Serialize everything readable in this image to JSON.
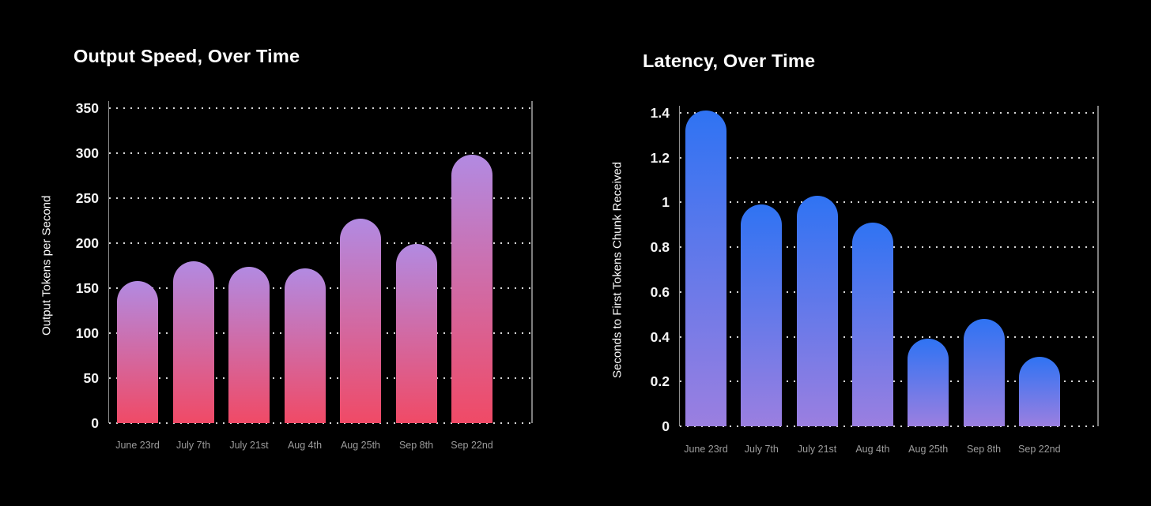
{
  "page": {
    "background_color": "#000000",
    "title_color": "#ffffff",
    "ytick_color": "#f4f4f4",
    "xtick_color": "#9c9c9c",
    "grid_color": "#d4d4d4",
    "axis_color": "#8f8f8f"
  },
  "chart_data": [
    {
      "type": "bar",
      "title": "Output Speed, Over Time",
      "ylabel": "Output Tokens per Second",
      "xlabel": "",
      "categories": [
        "June 23rd",
        "July 7th",
        "July 21st",
        "Aug 4th",
        "Aug 25th",
        "Sep 8th",
        "Sep 22nd"
      ],
      "values": [
        158,
        180,
        174,
        172,
        227,
        199,
        298
      ],
      "ylim": [
        0,
        350
      ],
      "yticks": [
        0,
        50,
        100,
        150,
        200,
        250,
        300,
        350
      ],
      "ytick_labels": [
        "0",
        "50",
        "100",
        "150",
        "200",
        "250",
        "300",
        "350"
      ],
      "grid": "dotted-horizontal",
      "legend": "none",
      "bar_gradient_top": "#b28ae2",
      "bar_gradient_bottom": "#f04a66"
    },
    {
      "type": "bar",
      "title": "Latency, Over Time",
      "ylabel": "Seconds to First Tokens Chunk Received",
      "xlabel": "",
      "categories": [
        "June 23rd",
        "July 7th",
        "July 21st",
        "Aug 4th",
        "Aug 25th",
        "Sep 8th",
        "Sep 22nd"
      ],
      "values": [
        1.41,
        0.99,
        1.03,
        0.91,
        0.39,
        0.48,
        0.31
      ],
      "ylim": [
        0,
        1.4
      ],
      "yticks": [
        0,
        0.2,
        0.4,
        0.6,
        0.8,
        1,
        1.2,
        1.4
      ],
      "ytick_labels": [
        "0",
        "0.2",
        "0.4",
        "0.6",
        "0.8",
        "1",
        "1.2",
        "1.4"
      ],
      "grid": "dotted-horizontal",
      "legend": "none",
      "bar_gradient_top": "#2f73f3",
      "bar_gradient_bottom": "#9b7fe0"
    }
  ]
}
